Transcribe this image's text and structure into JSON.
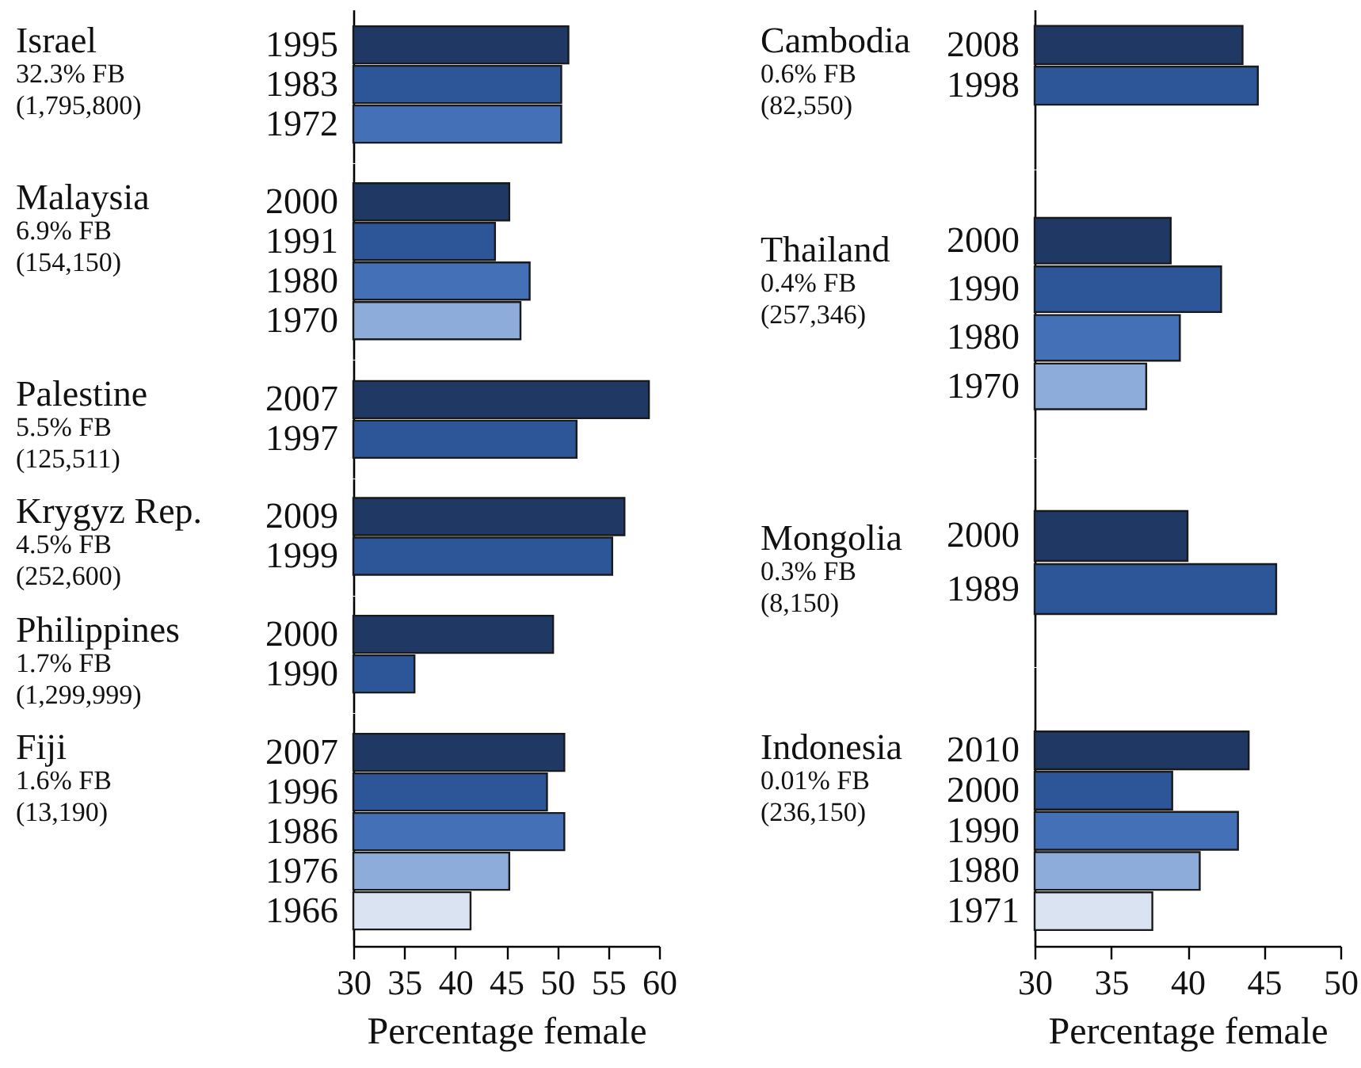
{
  "chart_data": [
    {
      "type": "bar",
      "orientation": "horizontal",
      "title": "Israel",
      "subtitle": "32.3% FB",
      "annotations": [
        "(1,795,800)"
      ],
      "categories": [
        "1995",
        "1983",
        "1972"
      ],
      "values": [
        51.1,
        50.4,
        50.4
      ],
      "colors": [
        "#1f3864",
        "#2c5697",
        "#4470b8"
      ],
      "xlim": [
        30,
        60
      ],
      "tick_labels": "y"
    },
    {
      "type": "bar",
      "orientation": "horizontal",
      "title": "Malaysia",
      "subtitle": "6.9% FB",
      "annotations": [
        "(154,150)"
      ],
      "categories": [
        "2000",
        "1991",
        "1980",
        "1970"
      ],
      "values": [
        45.3,
        43.9,
        47.3,
        46.4
      ],
      "colors": [
        "#1f3864",
        "#2c5697",
        "#4470b8",
        "#8eacd9"
      ],
      "xlim": [
        30,
        60
      ],
      "tick_labels": "y"
    },
    {
      "type": "bar",
      "orientation": "horizontal",
      "title": "Palestine",
      "subtitle": "5.5% FB",
      "annotations": [
        "(125,511)"
      ],
      "categories": [
        "2007",
        "1997"
      ],
      "values": [
        59.0,
        51.9
      ],
      "colors": [
        "#1f3864",
        "#2c5697"
      ],
      "xlim": [
        30,
        60
      ],
      "tick_labels": "y"
    },
    {
      "type": "bar",
      "orientation": "horizontal",
      "title": "Krygyz Rep.",
      "subtitle": "4.5% FB",
      "annotations": [
        "(252,600)"
      ],
      "categories": [
        "2009",
        "1999"
      ],
      "values": [
        56.6,
        55.4
      ],
      "colors": [
        "#1f3864",
        "#2c5697"
      ],
      "xlim": [
        30,
        60
      ],
      "tick_labels": "y"
    },
    {
      "type": "bar",
      "orientation": "horizontal",
      "title": "Philippines",
      "subtitle": "1.7% FB",
      "annotations": [
        "(1,299,999)"
      ],
      "categories": [
        "2000",
        "1990"
      ],
      "values": [
        49.6,
        36.0
      ],
      "colors": [
        "#1f3864",
        "#2c5697"
      ],
      "xlim": [
        30,
        60
      ],
      "tick_labels": "y"
    },
    {
      "type": "bar",
      "orientation": "horizontal",
      "title": "Fiji",
      "subtitle": "1.6% FB",
      "annotations": [
        "(13,190)"
      ],
      "categories": [
        "2007",
        "1996",
        "1986",
        "1976",
        "1966"
      ],
      "values": [
        50.7,
        49.0,
        50.7,
        45.3,
        41.5
      ],
      "colors": [
        "#1f3864",
        "#2c5697",
        "#4470b8",
        "#8eacd9",
        "#d9e3f2"
      ],
      "xlim": [
        30,
        60
      ],
      "xticks": [
        30,
        35,
        40,
        45,
        50,
        55,
        60
      ],
      "xlabel": "Percentage female"
    },
    {
      "type": "bar",
      "orientation": "horizontal",
      "title": "Cambodia",
      "subtitle": "0.6% FB",
      "annotations": [
        "(82,550)"
      ],
      "categories": [
        "2008",
        "1998"
      ],
      "values": [
        43.6,
        44.6
      ],
      "colors": [
        "#1f3864",
        "#2c5697"
      ],
      "xlim": [
        30,
        50
      ],
      "tick_labels": "y"
    },
    {
      "type": "bar",
      "orientation": "horizontal",
      "title": "Thailand",
      "subtitle": "0.4% FB",
      "annotations": [
        "(257,346)"
      ],
      "categories": [
        "2000",
        "1990",
        "1980",
        "1970"
      ],
      "values": [
        38.9,
        42.2,
        39.5,
        37.3
      ],
      "colors": [
        "#1f3864",
        "#2c5697",
        "#4470b8",
        "#8eacd9"
      ],
      "xlim": [
        30,
        50
      ],
      "tick_labels": "y"
    },
    {
      "type": "bar",
      "orientation": "horizontal",
      "title": "Mongolia",
      "subtitle": "0.3% FB",
      "annotations": [
        "(8,150)"
      ],
      "categories": [
        "2000",
        "1989"
      ],
      "values": [
        40.0,
        45.8
      ],
      "colors": [
        "#1f3864",
        "#2c5697"
      ],
      "xlim": [
        30,
        50
      ],
      "tick_labels": "y"
    },
    {
      "type": "bar",
      "orientation": "horizontal",
      "title": "Indonesia",
      "subtitle": "0.01% FB",
      "annotations": [
        "(236,150)"
      ],
      "categories": [
        "2010",
        "2000",
        "1990",
        "1980",
        "1971"
      ],
      "values": [
        44.0,
        39.0,
        43.3,
        40.8,
        37.7
      ],
      "colors": [
        "#1f3864",
        "#2c5697",
        "#4470b8",
        "#8eacd9",
        "#d9e3f2"
      ],
      "xlim": [
        30,
        50
      ],
      "xticks": [
        30,
        35,
        40,
        45,
        50
      ],
      "xlabel": "Percentage female"
    }
  ]
}
